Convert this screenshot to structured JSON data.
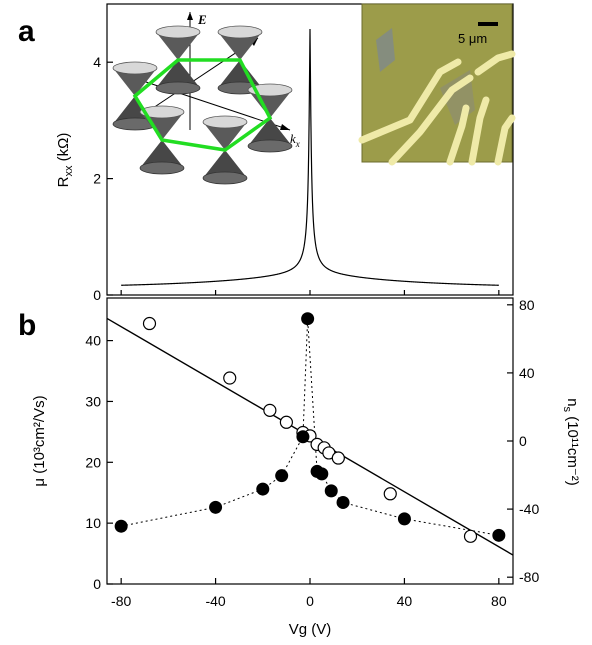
{
  "panel_labels": {
    "a": "a",
    "b": "b"
  },
  "inset": {
    "energy_axis_label": "E",
    "kx_label": "k",
    "kx_sub": "x",
    "ky_label": "k",
    "ky_sub": "y",
    "scale_bar_label": "5 μm",
    "hexagon_color": "#22dd22",
    "photo_background": "#9c9c4a",
    "electrode_color": "#efeaa8"
  },
  "axes_text": {
    "a_ylabel_main": "R",
    "a_ylabel_sub": "xx",
    "a_ylabel_unit": " (kΩ)",
    "b_ylabel_left": "μ (10³cm²/Vs)",
    "b_ylabel_right": "n",
    "b_ylabel_right_sub": "s",
    "b_ylabel_right_unit": " (10¹¹cm⁻²)",
    "xlabel": "Vg (V)"
  },
  "chart_data": [
    {
      "type": "line",
      "panel": "a",
      "ylabel": "Rxx (kΩ)",
      "xlim": [
        -86,
        86
      ],
      "ylim": [
        0,
        5
      ],
      "yticks": [
        0,
        2,
        4
      ],
      "peak": {
        "x": 0,
        "y": 4.32
      },
      "baseline": 0.12,
      "grid": false
    },
    {
      "type": "scatter",
      "panel": "b",
      "xlabel": "Vg (V)",
      "ylabel_left": "μ (10³cm²/Vs)",
      "ylabel_right": "ns (10¹¹cm⁻²)",
      "xlim": [
        -86,
        86
      ],
      "xticks": [
        -80,
        -40,
        0,
        40,
        80
      ],
      "ylim_left": [
        0,
        47
      ],
      "yticks_left": [
        0,
        10,
        20,
        30,
        40
      ],
      "ylim_right": [
        -84,
        84
      ],
      "yticks_right": [
        -80,
        -40,
        0,
        40,
        80
      ],
      "series": [
        {
          "marker": "filled",
          "axis": "left",
          "x": [
            -80,
            -40,
            -20,
            -12,
            -3,
            -1,
            3,
            5,
            9,
            14,
            40,
            80
          ],
          "y": [
            9.5,
            12.6,
            15.6,
            17.8,
            24.2,
            43.6,
            18.5,
            18.1,
            15.3,
            13.4,
            10.7,
            8.0
          ]
        },
        {
          "marker": "open",
          "axis": "right",
          "x": [
            -68,
            -34,
            -17,
            -10,
            -3,
            0,
            3,
            6,
            8,
            12,
            34,
            68
          ],
          "y": [
            69,
            37,
            18,
            11,
            5,
            3,
            -2,
            -4,
            -7,
            -10,
            -31,
            -56
          ]
        },
        {
          "type": "line",
          "axis": "right",
          "x": [
            -86,
            86
          ],
          "y": [
            72,
            -67
          ]
        }
      ],
      "grid": false
    }
  ]
}
